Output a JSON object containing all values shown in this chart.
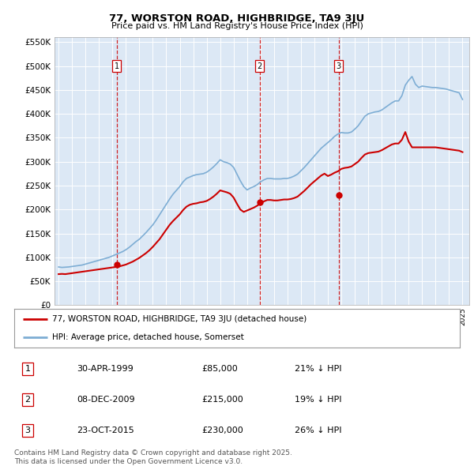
{
  "title": "77, WORSTON ROAD, HIGHBRIDGE, TA9 3JU",
  "subtitle": "Price paid vs. HM Land Registry's House Price Index (HPI)",
  "plot_bg_color": "#dce8f5",
  "ylim": [
    0,
    560000
  ],
  "yticks": [
    0,
    50000,
    100000,
    150000,
    200000,
    250000,
    300000,
    350000,
    400000,
    450000,
    500000,
    550000
  ],
  "ytick_labels": [
    "£0",
    "£50K",
    "£100K",
    "£150K",
    "£200K",
    "£250K",
    "£300K",
    "£350K",
    "£400K",
    "£450K",
    "£500K",
    "£550K"
  ],
  "sale_dates": [
    1999.33,
    2009.93,
    2015.81
  ],
  "sale_prices": [
    85000,
    215000,
    230000
  ],
  "sale_labels": [
    "1",
    "2",
    "3"
  ],
  "red_line_color": "#cc0000",
  "blue_line_color": "#7dadd4",
  "legend_label_red": "77, WORSTON ROAD, HIGHBRIDGE, TA9 3JU (detached house)",
  "legend_label_blue": "HPI: Average price, detached house, Somerset",
  "table_data": [
    [
      "1",
      "30-APR-1999",
      "£85,000",
      "21% ↓ HPI"
    ],
    [
      "2",
      "08-DEC-2009",
      "£215,000",
      "19% ↓ HPI"
    ],
    [
      "3",
      "23-OCT-2015",
      "£230,000",
      "26% ↓ HPI"
    ]
  ],
  "footnote": "Contains HM Land Registry data © Crown copyright and database right 2025.\nThis data is licensed under the Open Government Licence v3.0.",
  "hpi_x": [
    1995,
    1995.25,
    1995.5,
    1995.75,
    1996,
    1996.25,
    1996.5,
    1996.75,
    1997,
    1997.25,
    1997.5,
    1997.75,
    1998,
    1998.25,
    1998.5,
    1998.75,
    1999,
    1999.25,
    1999.5,
    1999.75,
    2000,
    2000.25,
    2000.5,
    2000.75,
    2001,
    2001.25,
    2001.5,
    2001.75,
    2002,
    2002.25,
    2002.5,
    2002.75,
    2003,
    2003.25,
    2003.5,
    2003.75,
    2004,
    2004.25,
    2004.5,
    2004.75,
    2005,
    2005.25,
    2005.5,
    2005.75,
    2006,
    2006.25,
    2006.5,
    2006.75,
    2007,
    2007.25,
    2007.5,
    2007.75,
    2008,
    2008.25,
    2008.5,
    2008.75,
    2009,
    2009.25,
    2009.5,
    2009.75,
    2010,
    2010.25,
    2010.5,
    2010.75,
    2011,
    2011.25,
    2011.5,
    2011.75,
    2012,
    2012.25,
    2012.5,
    2012.75,
    2013,
    2013.25,
    2013.5,
    2013.75,
    2014,
    2014.25,
    2014.5,
    2014.75,
    2015,
    2015.25,
    2015.5,
    2015.75,
    2016,
    2016.25,
    2016.5,
    2016.75,
    2017,
    2017.25,
    2017.5,
    2017.75,
    2018,
    2018.25,
    2018.5,
    2018.75,
    2019,
    2019.25,
    2019.5,
    2019.75,
    2020,
    2020.25,
    2020.5,
    2020.75,
    2021,
    2021.25,
    2021.5,
    2021.75,
    2022,
    2022.25,
    2022.5,
    2022.75,
    2023,
    2023.25,
    2023.5,
    2023.75,
    2024,
    2024.25,
    2024.5,
    2024.75,
    2025
  ],
  "hpi_y": [
    80000,
    79000,
    79500,
    80000,
    81000,
    82000,
    83000,
    84000,
    86000,
    88000,
    90000,
    92000,
    94000,
    96000,
    98000,
    100000,
    103000,
    106000,
    109000,
    112000,
    116000,
    121000,
    127000,
    133000,
    138000,
    145000,
    152000,
    160000,
    168000,
    178000,
    189000,
    200000,
    211000,
    222000,
    232000,
    240000,
    248000,
    258000,
    265000,
    268000,
    271000,
    273000,
    274000,
    275000,
    278000,
    283000,
    289000,
    296000,
    304000,
    300000,
    298000,
    295000,
    288000,
    274000,
    260000,
    248000,
    241000,
    245000,
    248000,
    252000,
    258000,
    262000,
    265000,
    265000,
    264000,
    264000,
    264000,
    265000,
    265000,
    267000,
    270000,
    274000,
    281000,
    288000,
    296000,
    304000,
    312000,
    320000,
    328000,
    334000,
    340000,
    346000,
    353000,
    358000,
    361000,
    360000,
    360000,
    362000,
    368000,
    375000,
    385000,
    395000,
    400000,
    402000,
    404000,
    405000,
    408000,
    413000,
    418000,
    423000,
    427000,
    427000,
    438000,
    460000,
    470000,
    478000,
    462000,
    455000,
    458000,
    457000,
    456000,
    455000,
    455000,
    454000,
    453000,
    452000,
    450000,
    448000,
    446000,
    444000,
    430000
  ],
  "red_x": [
    1995,
    1995.25,
    1995.5,
    1995.75,
    1996,
    1996.25,
    1996.5,
    1996.75,
    1997,
    1997.25,
    1997.5,
    1997.75,
    1998,
    1998.25,
    1998.5,
    1998.75,
    1999,
    1999.25,
    1999.5,
    1999.75,
    2000,
    2000.25,
    2000.5,
    2000.75,
    2001,
    2001.25,
    2001.5,
    2001.75,
    2002,
    2002.25,
    2002.5,
    2002.75,
    2003,
    2003.25,
    2003.5,
    2003.75,
    2004,
    2004.25,
    2004.5,
    2004.75,
    2005,
    2005.25,
    2005.5,
    2005.75,
    2006,
    2006.25,
    2006.5,
    2006.75,
    2007,
    2007.25,
    2007.5,
    2007.75,
    2008,
    2008.25,
    2008.5,
    2008.75,
    2009,
    2009.25,
    2009.5,
    2009.75,
    2010,
    2010.25,
    2010.5,
    2010.75,
    2011,
    2011.25,
    2011.5,
    2011.75,
    2012,
    2012.25,
    2012.5,
    2012.75,
    2013,
    2013.25,
    2013.5,
    2013.75,
    2014,
    2014.25,
    2014.5,
    2014.75,
    2015,
    2015.25,
    2015.5,
    2015.75,
    2016,
    2016.25,
    2016.5,
    2016.75,
    2017,
    2017.25,
    2017.5,
    2017.75,
    2018,
    2018.25,
    2018.5,
    2018.75,
    2019,
    2019.25,
    2019.5,
    2019.75,
    2020,
    2020.25,
    2020.5,
    2020.75,
    2021,
    2021.25,
    2021.5,
    2021.75,
    2022,
    2022.25,
    2022.5,
    2022.75,
    2023,
    2023.25,
    2023.5,
    2023.75,
    2024,
    2024.25,
    2024.5,
    2024.75,
    2025
  ],
  "red_y": [
    65000,
    65500,
    65000,
    66000,
    67000,
    68000,
    69000,
    70000,
    71000,
    72000,
    73000,
    74000,
    75000,
    76000,
    77000,
    78000,
    79000,
    80000,
    81000,
    83000,
    85000,
    88000,
    91000,
    95000,
    99000,
    104000,
    109000,
    115000,
    122000,
    130000,
    138000,
    148000,
    158000,
    168000,
    176000,
    183000,
    190000,
    199000,
    206000,
    210000,
    212000,
    213000,
    215000,
    216000,
    218000,
    222000,
    227000,
    233000,
    240000,
    238000,
    236000,
    233000,
    225000,
    212000,
    200000,
    195000,
    198000,
    201000,
    204000,
    208000,
    213000,
    217000,
    220000,
    220000,
    219000,
    219000,
    220000,
    221000,
    221000,
    222000,
    224000,
    227000,
    233000,
    239000,
    246000,
    253000,
    259000,
    265000,
    271000,
    275000,
    270000,
    273000,
    277000,
    280000,
    285000,
    287000,
    288000,
    290000,
    295000,
    300000,
    308000,
    315000,
    318000,
    319000,
    320000,
    321000,
    324000,
    328000,
    332000,
    336000,
    338000,
    338000,
    346000,
    362000,
    342000,
    330000,
    330000,
    330000,
    330000,
    330000,
    330000,
    330000,
    330000,
    329000,
    328000,
    327000,
    326000,
    325000,
    324000,
    323000,
    320000
  ]
}
